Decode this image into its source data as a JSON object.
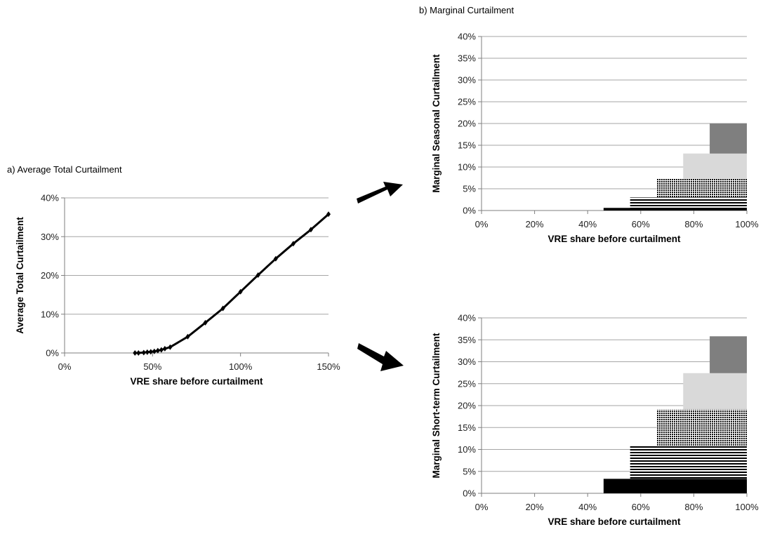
{
  "panel_a_title": "a) Average Total Curtailment",
  "panel_b_title": "b) Marginal Curtailment",
  "colors": {
    "line": "#000000",
    "grid": "#a6a6a6",
    "solid": "#000000",
    "stripes": "#000000",
    "dots": "#111111",
    "light": "#d9d9d9",
    "dark": "#7f7f7f"
  },
  "chart_data": [
    {
      "type": "line",
      "title": "",
      "xlabel": "VRE share before curtailment",
      "ylabel": "Average Total Curtailment",
      "xlim": [
        0,
        150
      ],
      "ylim": [
        0,
        40
      ],
      "x_ticks": [
        "0%",
        "50%",
        "100%",
        "150%"
      ],
      "y_ticks": [
        "0%",
        "10%",
        "20%",
        "30%",
        "40%"
      ],
      "grid": "horizontal",
      "series": [
        {
          "x": [
            40,
            42,
            45,
            47,
            49,
            51,
            53,
            55,
            57,
            60,
            70,
            80,
            90,
            100,
            110,
            120,
            130,
            140,
            150
          ],
          "y": [
            0,
            0,
            0.1,
            0.2,
            0.3,
            0.4,
            0.6,
            0.8,
            1.1,
            1.5,
            4.2,
            7.8,
            11.5,
            15.8,
            20.1,
            24.3,
            28.2,
            31.8,
            35.8
          ]
        }
      ]
    },
    {
      "type": "bar",
      "title": "",
      "xlabel": "VRE share before curtailment",
      "ylabel": "Marginal Seasonal Curtailment",
      "xlim": [
        0,
        100
      ],
      "ylim": [
        0,
        40
      ],
      "x_ticks": [
        "0%",
        "20%",
        "40%",
        "60%",
        "80%",
        "100%"
      ],
      "y_ticks": [
        "0%",
        "5%",
        "10%",
        "15%",
        "20%",
        "25%",
        "30%",
        "35%",
        "40%"
      ],
      "grid": "horizontal",
      "bars": [
        {
          "x_from": 46,
          "x_to": 100,
          "value": 0.6,
          "fill": "solid"
        },
        {
          "x_from": 56,
          "x_to": 100,
          "value": 3.0,
          "fill": "stripes"
        },
        {
          "x_from": 66,
          "x_to": 100,
          "value": 7.3,
          "fill": "dots"
        },
        {
          "x_from": 76,
          "x_to": 100,
          "value": 13.1,
          "fill": "light"
        },
        {
          "x_from": 86,
          "x_to": 100,
          "value": 20.0,
          "fill": "dark"
        }
      ]
    },
    {
      "type": "bar",
      "title": "",
      "xlabel": "VRE share before curtailment",
      "ylabel": "Marginal Short-term Curtailment",
      "xlim": [
        0,
        100
      ],
      "ylim": [
        0,
        40
      ],
      "x_ticks": [
        "0%",
        "20%",
        "40%",
        "60%",
        "80%",
        "100%"
      ],
      "y_ticks": [
        "0%",
        "5%",
        "10%",
        "15%",
        "20%",
        "25%",
        "30%",
        "35%",
        "40%"
      ],
      "grid": "horizontal",
      "bars": [
        {
          "x_from": 46,
          "x_to": 100,
          "value": 3.3,
          "fill": "solid"
        },
        {
          "x_from": 56,
          "x_to": 100,
          "value": 10.9,
          "fill": "stripes"
        },
        {
          "x_from": 66,
          "x_to": 100,
          "value": 19.1,
          "fill": "dots"
        },
        {
          "x_from": 76,
          "x_to": 100,
          "value": 27.4,
          "fill": "light"
        },
        {
          "x_from": 86,
          "x_to": 100,
          "value": 35.8,
          "fill": "dark"
        }
      ]
    }
  ]
}
